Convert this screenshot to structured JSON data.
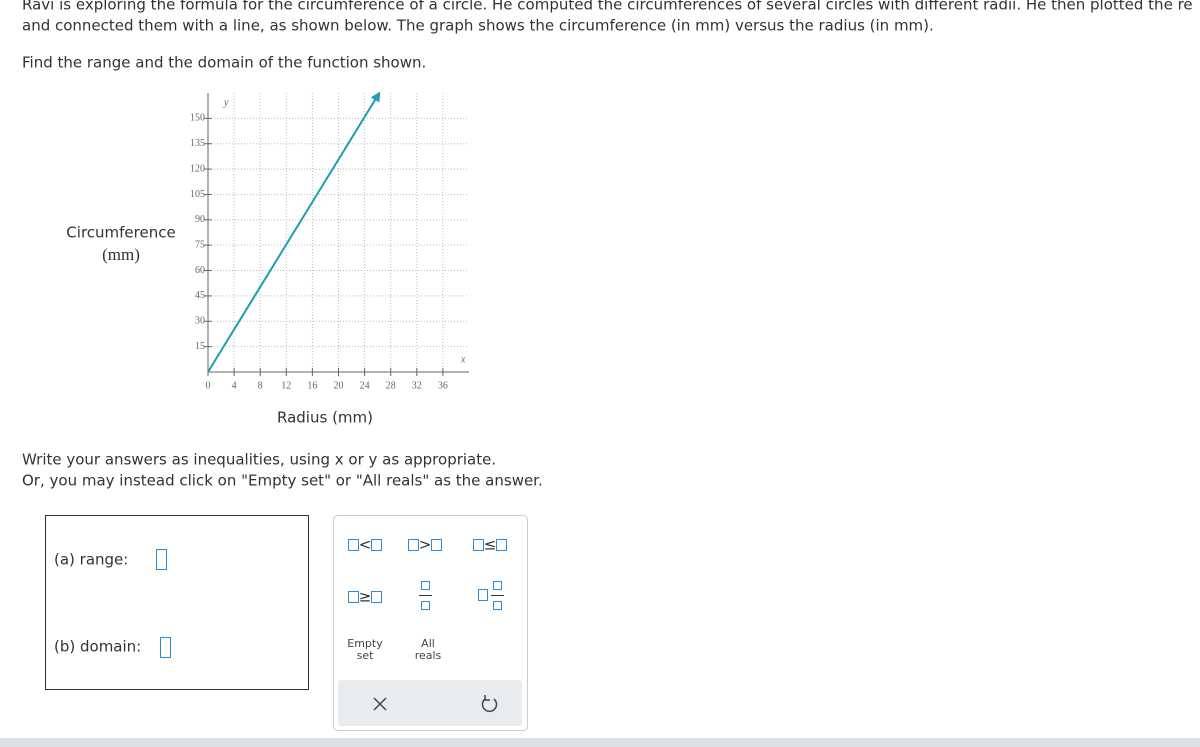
{
  "problem": {
    "line1": "Ravi is exploring the formula for the circumference of a circle. He computed the circumferences of several circles with different radii. He then plotted the re",
    "line2": "and connected them with a line, as shown below. The graph shows the circumference (in mm) versus the radius (in mm).",
    "question": "Find the range and the domain of the function shown."
  },
  "chart_data": {
    "type": "line",
    "y_label": "Circumference",
    "y_label_unit": "(mm)",
    "x_label": "Radius (mm)",
    "x_axis_letter": "x",
    "y_axis_letter": "y",
    "x": [
      0,
      26
    ],
    "values": [
      0,
      163.4
    ],
    "color": "#1f9db3",
    "xlim": [
      0,
      40
    ],
    "ylim": [
      0,
      165
    ],
    "xticks": [
      0,
      4,
      8,
      12,
      16,
      20,
      24,
      28,
      32,
      36
    ],
    "yticks": [
      15,
      30,
      45,
      60,
      75,
      90,
      105,
      120,
      135,
      150
    ],
    "grid": true
  },
  "instructions": {
    "line1": "Write your answers as inequalities, using x or y as appropriate.",
    "line2": "Or, you may instead click on \"Empty set\" or \"All reals\" as the answer."
  },
  "answers": {
    "range_label": "(a) range:",
    "domain_label": "(b) domain:"
  },
  "keypad": {
    "operators": [
      "<",
      ">",
      "≤",
      "≥"
    ],
    "empty_set": [
      "Empty",
      "set"
    ],
    "all_reals": [
      "All",
      "reals"
    ]
  }
}
